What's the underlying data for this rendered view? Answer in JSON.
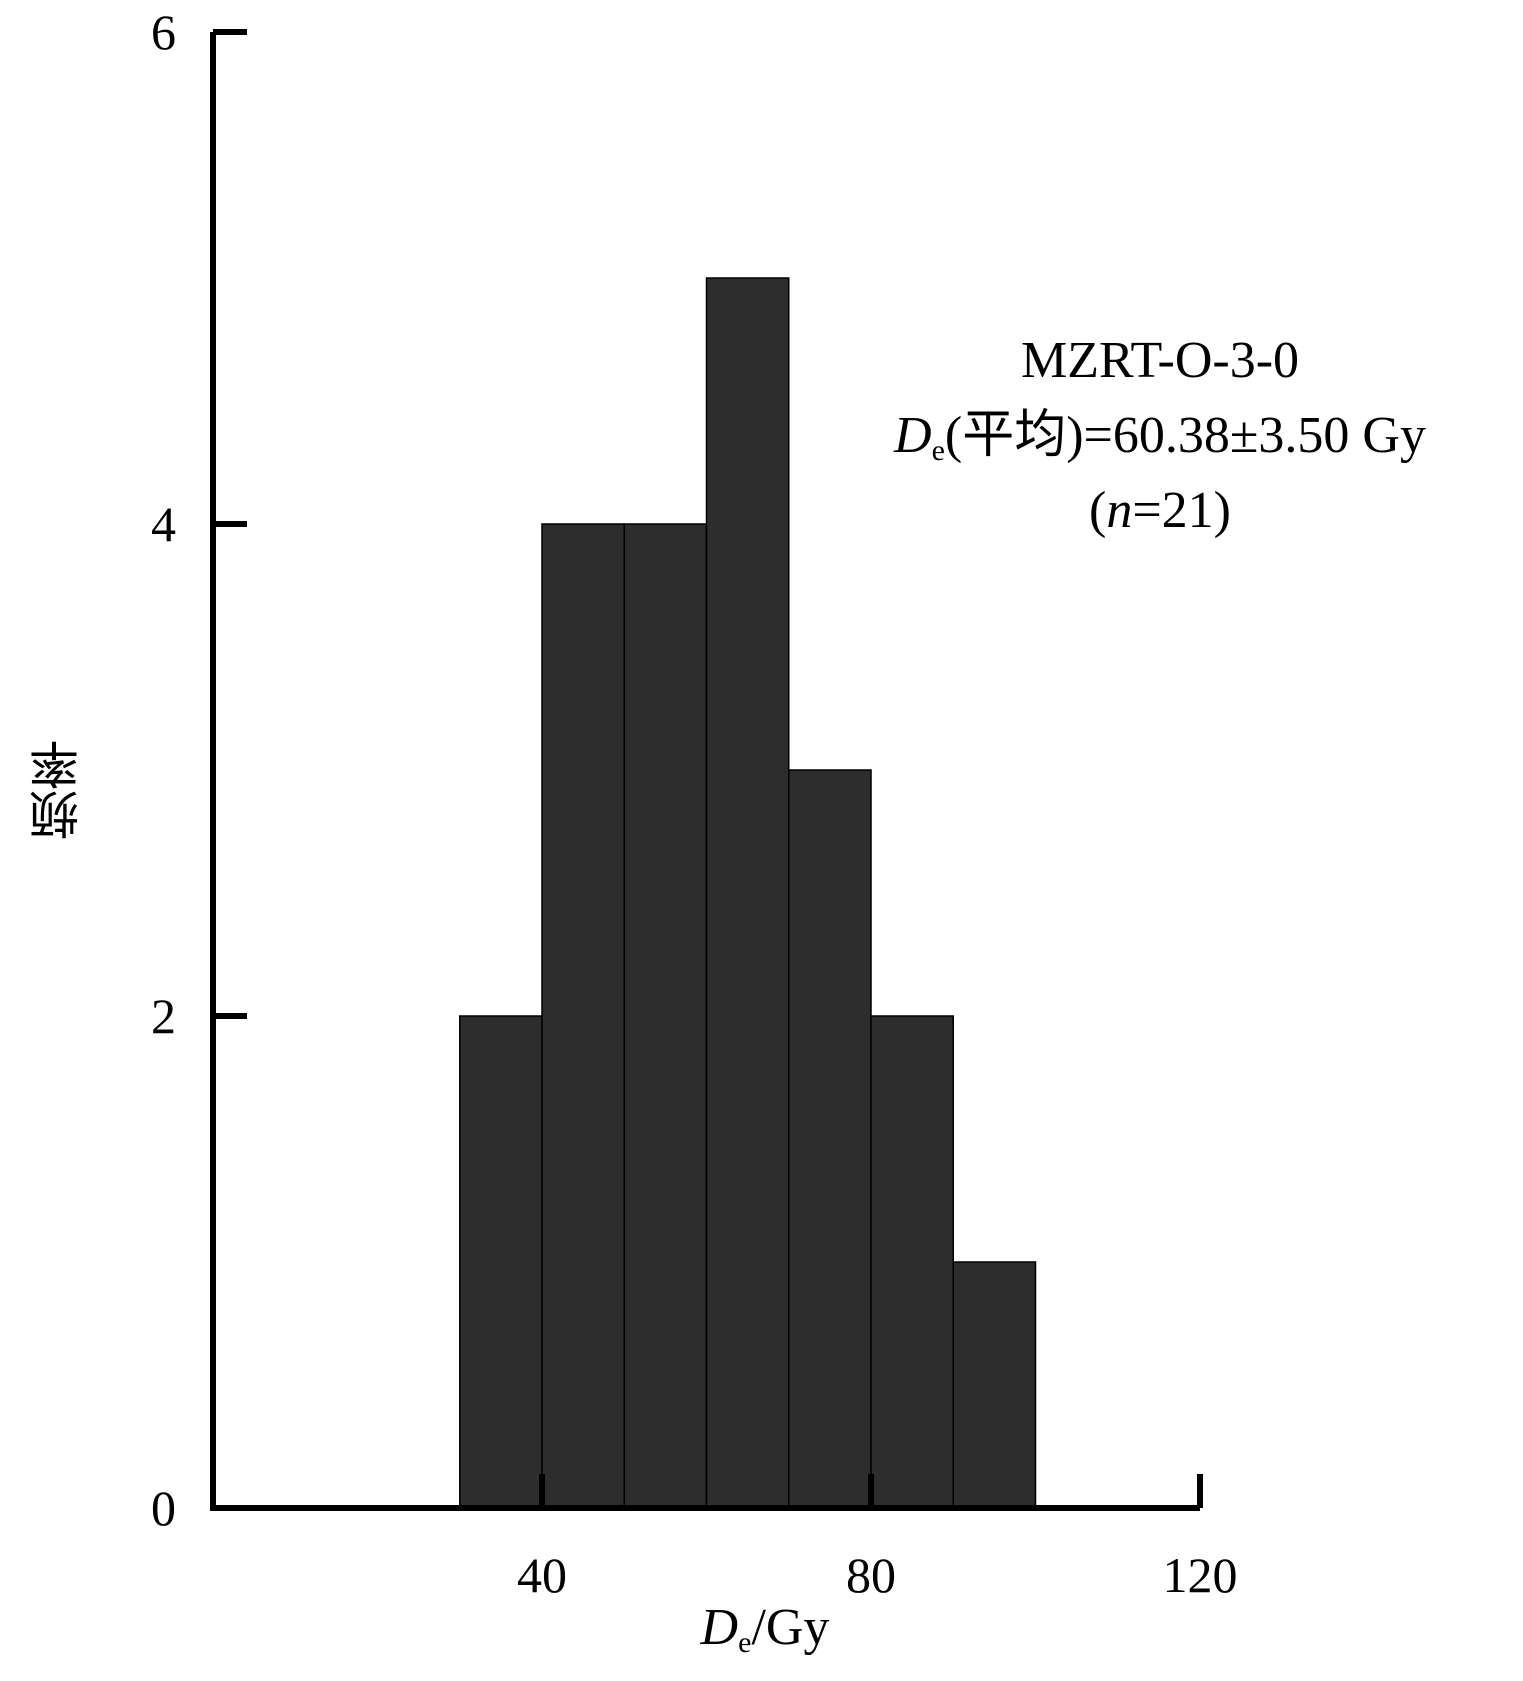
{
  "chart_data": {
    "type": "bar",
    "bin_edges": [
      30,
      40,
      50,
      60,
      70,
      80,
      90,
      100
    ],
    "values": [
      2,
      4,
      4,
      5,
      3,
      2,
      1
    ],
    "xlabel": {
      "symbol": "D",
      "sub": "e",
      "unit": "/Gy"
    },
    "ylabel": "频率",
    "xlim": [
      0,
      120
    ],
    "ylim": [
      0,
      6
    ],
    "xticks": [
      40,
      80,
      120
    ],
    "yticks": [
      0,
      2,
      4,
      6
    ],
    "grid": false,
    "bar_color": "#2d2d2d",
    "annotation": {
      "sample": "MZRT-O-3-0",
      "mean_symbol": "D",
      "mean_sub": "e",
      "mean_text": "(平均)=60.38±3.50 Gy",
      "n_open": "(",
      "n_symbol": "n",
      "n_text": "=21)"
    }
  }
}
